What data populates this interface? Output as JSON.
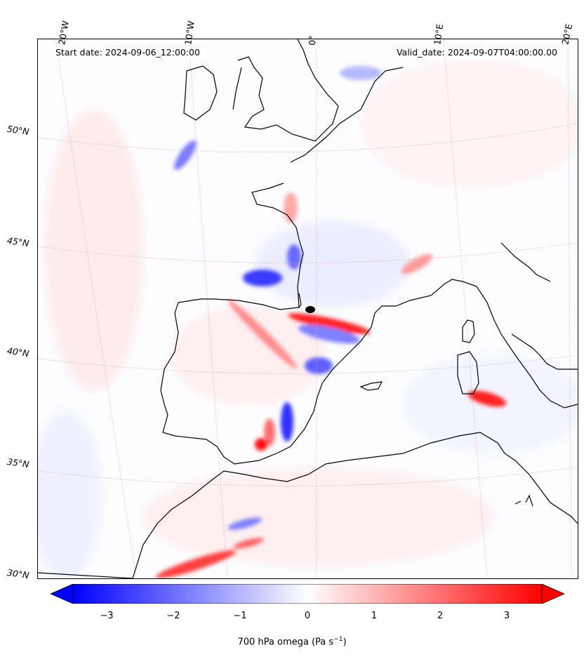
{
  "header": {
    "start_date": "Start date: 2024-09-06_12:00:00",
    "valid_date": "Valid_date: 2024-09-07T04:00:00.00"
  },
  "lon_labels": [
    "20°W",
    "10°W",
    "0°",
    "10°E",
    "20°E"
  ],
  "lat_labels": [
    "50°N",
    "45°N",
    "40°N",
    "35°N",
    "30°N"
  ],
  "colorbar": {
    "ticks": [
      "−3",
      "−2",
      "−1",
      "0",
      "1",
      "2",
      "3"
    ],
    "label": "700 hPa omega (Pa s",
    "label_sup": "−1",
    "label_end": ")",
    "range": [
      -3.5,
      3.5
    ],
    "colors": {
      "negative": "#0000ff",
      "zero": "#ffffff",
      "positive": "#ff0000"
    }
  }
}
